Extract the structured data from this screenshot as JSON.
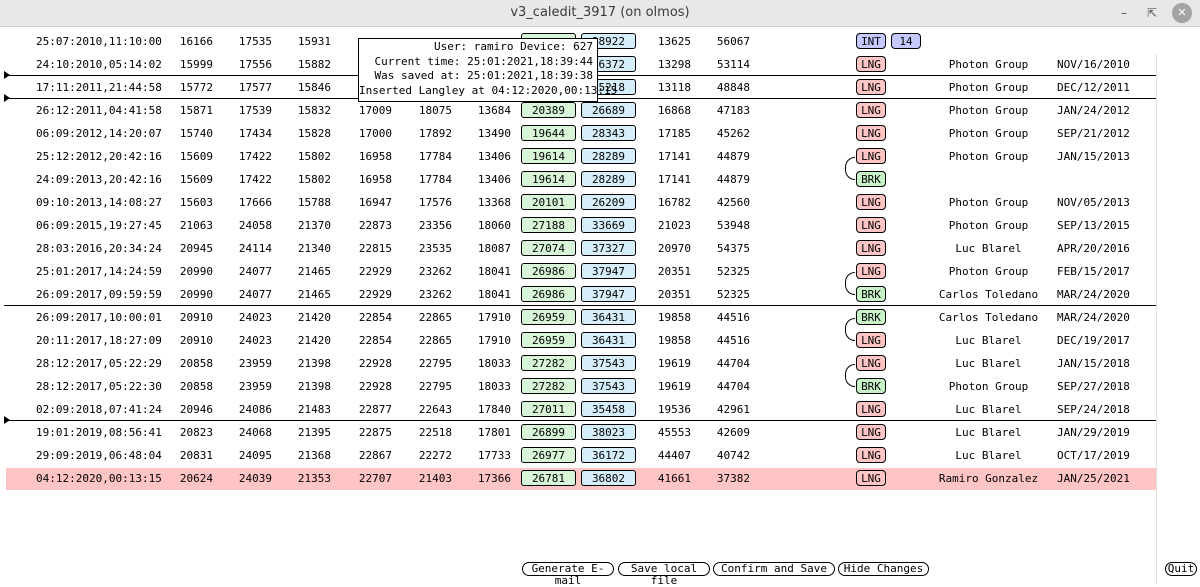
{
  "window": {
    "title": "v3_caledit_3917 (on olmos)"
  },
  "tooltip": {
    "lines": [
      "User: ramiro Device: 627",
      "Current time: 25:01:2021,18:39:44",
      "Was saved at: 25:01:2021,18:39:38",
      "Inserted Langley at 04:12:2020,00:13:15"
    ]
  },
  "rows": [
    {
      "date": "25:07:2010,11:10:00",
      "c1": "16166",
      "c2": "17535",
      "c3": "15931",
      "c4": "",
      "c5": "",
      "c6": "",
      "g": "",
      "b": "38922",
      "c7": "13625",
      "c8": "56067",
      "badge": "INT",
      "extra": "14",
      "group": "",
      "caldate": ""
    },
    {
      "date": "24:10:2010,05:14:02",
      "c1": "15999",
      "c2": "17556",
      "c3": "15882",
      "c4": "",
      "c5": "",
      "c6": "",
      "g": "",
      "b": "36372",
      "c7": "13298",
      "c8": "53114",
      "badge": "LNG",
      "group": "Photon Group",
      "caldate": "NOV/16/2010"
    },
    {
      "date": "17:11:2011,21:44:58",
      "c1": "15772",
      "c2": "17577",
      "c3": "15846",
      "c4": "",
      "c5": "",
      "c6": "",
      "g": "",
      "b": "35218",
      "c7": "13118",
      "c8": "48848",
      "badge": "LNG",
      "group": "Photon Group",
      "caldate": "DEC/12/2011"
    },
    {
      "date": "26:12:2011,04:41:58",
      "c1": "15871",
      "c2": "17539",
      "c3": "15832",
      "c4": "17009",
      "c5": "18075",
      "c6": "13684",
      "g": "20389",
      "b": "26689",
      "c7": "16868",
      "c8": "47183",
      "badge": "LNG",
      "group": "Photon Group",
      "caldate": "JAN/24/2012"
    },
    {
      "date": "06:09:2012,14:20:07",
      "c1": "15740",
      "c2": "17434",
      "c3": "15828",
      "c4": "17000",
      "c5": "17892",
      "c6": "13490",
      "g": "19644",
      "b": "28343",
      "c7": "17185",
      "c8": "45262",
      "badge": "LNG",
      "group": "Photon Group",
      "caldate": "SEP/21/2012"
    },
    {
      "date": "25:12:2012,20:42:16",
      "c1": "15609",
      "c2": "17422",
      "c3": "15802",
      "c4": "16958",
      "c5": "17784",
      "c6": "13406",
      "g": "19614",
      "b": "28289",
      "c7": "17141",
      "c8": "44879",
      "badge": "LNG",
      "group": "Photon Group",
      "caldate": "JAN/15/2013"
    },
    {
      "date": "24:09:2013,20:42:16",
      "c1": "15609",
      "c2": "17422",
      "c3": "15802",
      "c4": "16958",
      "c5": "17784",
      "c6": "13406",
      "g": "19614",
      "b": "28289",
      "c7": "17141",
      "c8": "44879",
      "badge": "BRK",
      "group": "",
      "caldate": ""
    },
    {
      "date": "09:10:2013,14:08:27",
      "c1": "15603",
      "c2": "17666",
      "c3": "15788",
      "c4": "16947",
      "c5": "17576",
      "c6": "13368",
      "g": "20101",
      "b": "26209",
      "c7": "16782",
      "c8": "42560",
      "badge": "LNG",
      "group": "Photon Group",
      "caldate": "NOV/05/2013"
    },
    {
      "date": "06:09:2015,19:27:45",
      "c1": "21063",
      "c2": "24058",
      "c3": "21370",
      "c4": "22873",
      "c5": "23356",
      "c6": "18060",
      "g": "27188",
      "b": "33669",
      "c7": "21023",
      "c8": "53948",
      "badge": "LNG",
      "group": "Photon Group",
      "caldate": "SEP/13/2015"
    },
    {
      "date": "28:03:2016,20:34:24",
      "c1": "20945",
      "c2": "24114",
      "c3": "21340",
      "c4": "22815",
      "c5": "23535",
      "c6": "18087",
      "g": "27074",
      "b": "37327",
      "c7": "20970",
      "c8": "54375",
      "badge": "LNG",
      "group": "Luc Blarel",
      "caldate": "APR/20/2016"
    },
    {
      "date": "25:01:2017,14:24:59",
      "c1": "20990",
      "c2": "24077",
      "c3": "21465",
      "c4": "22929",
      "c5": "23262",
      "c6": "18041",
      "g": "26986",
      "b": "37947",
      "c7": "20351",
      "c8": "52325",
      "badge": "LNG",
      "group": "Photon Group",
      "caldate": "FEB/15/2017"
    },
    {
      "date": "26:09:2017,09:59:59",
      "c1": "20990",
      "c2": "24077",
      "c3": "21465",
      "c4": "22929",
      "c5": "23262",
      "c6": "18041",
      "g": "26986",
      "b": "37947",
      "c7": "20351",
      "c8": "52325",
      "badge": "BRK",
      "group": "Carlos Toledano",
      "caldate": "MAR/24/2020"
    },
    {
      "date": "26:09:2017,10:00:01",
      "c1": "20910",
      "c2": "24023",
      "c3": "21420",
      "c4": "22854",
      "c5": "22865",
      "c6": "17910",
      "g": "26959",
      "b": "36431",
      "c7": "19858",
      "c8": "44516",
      "badge": "BRK",
      "group": "Carlos Toledano",
      "caldate": "MAR/24/2020"
    },
    {
      "date": "20:11:2017,18:27:09",
      "c1": "20910",
      "c2": "24023",
      "c3": "21420",
      "c4": "22854",
      "c5": "22865",
      "c6": "17910",
      "g": "26959",
      "b": "36431",
      "c7": "19858",
      "c8": "44516",
      "badge": "LNG",
      "group": "Luc Blarel",
      "caldate": "DEC/19/2017"
    },
    {
      "date": "28:12:2017,05:22:29",
      "c1": "20858",
      "c2": "23959",
      "c3": "21398",
      "c4": "22928",
      "c5": "22795",
      "c6": "18033",
      "g": "27282",
      "b": "37543",
      "c7": "19619",
      "c8": "44704",
      "badge": "LNG",
      "group": "Luc Blarel",
      "caldate": "JAN/15/2018"
    },
    {
      "date": "28:12:2017,05:22:30",
      "c1": "20858",
      "c2": "23959",
      "c3": "21398",
      "c4": "22928",
      "c5": "22795",
      "c6": "18033",
      "g": "27282",
      "b": "37543",
      "c7": "19619",
      "c8": "44704",
      "badge": "BRK",
      "group": "Photon Group",
      "caldate": "SEP/27/2018"
    },
    {
      "date": "02:09:2018,07:41:24",
      "c1": "20946",
      "c2": "24086",
      "c3": "21483",
      "c4": "22877",
      "c5": "22643",
      "c6": "17840",
      "g": "27011",
      "b": "35458",
      "c7": "19536",
      "c8": "42961",
      "badge": "LNG",
      "group": "Luc Blarel",
      "caldate": "SEP/24/2018"
    },
    {
      "date": "19:01:2019,08:56:41",
      "c1": "20823",
      "c2": "24068",
      "c3": "21395",
      "c4": "22875",
      "c5": "22518",
      "c6": "17801",
      "g": "26899",
      "b": "38023",
      "c7": "45553",
      "c8": "42609",
      "badge": "LNG",
      "group": "Luc Blarel",
      "caldate": "JAN/29/2019"
    },
    {
      "date": "29:09:2019,06:48:04",
      "c1": "20831",
      "c2": "24095",
      "c3": "21368",
      "c4": "22867",
      "c5": "22272",
      "c6": "17733",
      "g": "26977",
      "b": "36172",
      "c7": "44407",
      "c8": "40742",
      "badge": "LNG",
      "group": "Luc Blarel",
      "caldate": "OCT/17/2019"
    },
    {
      "date": "04:12:2020,00:13:15",
      "c1": "20624",
      "c2": "24039",
      "c3": "21353",
      "c4": "22707",
      "c5": "21403",
      "c6": "17366",
      "g": "26781",
      "b": "36802",
      "c7": "41661",
      "c8": "37382",
      "badge": "LNG",
      "group": "Ramiro Gonzalez",
      "caldate": "JAN/25/2021",
      "highlight": true
    }
  ],
  "buttons": {
    "generate_email": "Generate E-mail",
    "save_local": "Save local file",
    "confirm_save": "Confirm and Save",
    "hide_changes": "Hide Changes",
    "quit": "Quit"
  },
  "colors": {
    "lng": "#ffc4c4",
    "brk": "#c7f3c7",
    "int": "#c5c9ff",
    "green_box": "#d8f5d8",
    "blue_box": "#d6eefa",
    "highlight_row": "#ffc4c4"
  }
}
